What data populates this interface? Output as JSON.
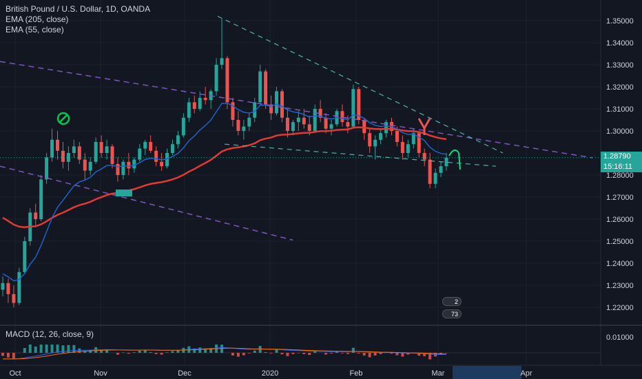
{
  "legend": {
    "symbol": "British Pound / U.S. Dollar, 1D, OANDA",
    "ema1": "EMA (205, close)",
    "ema2": "EMA (55, close)"
  },
  "macd_label": "MACD (12, 26, close, 9)",
  "price_axis": {
    "ticks": [
      "1.35000",
      "1.34000",
      "1.33000",
      "1.32000",
      "1.31000",
      "1.30000",
      "1.28000",
      "1.27000",
      "1.26000",
      "1.25000",
      "1.24000",
      "1.23000",
      "1.22000"
    ],
    "current_price": "1.28790",
    "countdown": "15:16:11",
    "macd_tick": "0.01000"
  },
  "time_axis": [
    "Oct",
    "Nov",
    "Dec",
    "2020",
    "Feb",
    "Mar",
    "Apr"
  ],
  "event_badges": [
    {
      "count": "2"
    },
    {
      "count": "73"
    }
  ],
  "colors": {
    "background": "#131722",
    "up": "#26a69a",
    "down": "#ef5350",
    "ema205": "#e53935",
    "ema55": "#1e64c8",
    "trend_purple": "#7e57c2",
    "trend_green": "#4db6ac",
    "price_tag": "#26a69a"
  },
  "chart_data": {
    "type": "candlestick",
    "title": "British Pound / U.S. Dollar, 1D, OANDA",
    "ylim": [
      1.215,
      1.355
    ],
    "series_candles": [
      [
        1.228,
        1.234,
        1.225,
        1.231
      ],
      [
        1.231,
        1.233,
        1.222,
        1.226
      ],
      [
        1.226,
        1.23,
        1.22,
        1.222
      ],
      [
        1.222,
        1.238,
        1.221,
        1.236
      ],
      [
        1.236,
        1.252,
        1.235,
        1.25
      ],
      [
        1.25,
        1.265,
        1.248,
        1.263
      ],
      [
        1.263,
        1.267,
        1.257,
        1.26
      ],
      [
        1.26,
        1.28,
        1.259,
        1.278
      ],
      [
        1.278,
        1.29,
        1.276,
        1.288
      ],
      [
        1.288,
        1.301,
        1.286,
        1.296
      ],
      [
        1.296,
        1.3,
        1.287,
        1.291
      ],
      [
        1.291,
        1.295,
        1.283,
        1.286
      ],
      [
        1.286,
        1.293,
        1.282,
        1.29
      ],
      [
        1.29,
        1.296,
        1.288,
        1.293
      ],
      [
        1.293,
        1.295,
        1.285,
        1.287
      ],
      [
        1.287,
        1.29,
        1.278,
        1.282
      ],
      [
        1.282,
        1.288,
        1.28,
        1.286
      ],
      [
        1.286,
        1.297,
        1.285,
        1.295
      ],
      [
        1.295,
        1.298,
        1.288,
        1.29
      ],
      [
        1.29,
        1.296,
        1.287,
        1.293
      ],
      [
        1.293,
        1.294,
        1.283,
        1.285
      ],
      [
        1.285,
        1.288,
        1.277,
        1.28
      ],
      [
        1.28,
        1.287,
        1.278,
        1.286
      ],
      [
        1.286,
        1.29,
        1.28,
        1.283
      ],
      [
        1.283,
        1.288,
        1.281,
        1.287
      ],
      [
        1.287,
        1.294,
        1.286,
        1.292
      ],
      [
        1.292,
        1.296,
        1.289,
        1.295
      ],
      [
        1.295,
        1.298,
        1.29,
        1.291
      ],
      [
        1.291,
        1.293,
        1.284,
        1.286
      ],
      [
        1.286,
        1.29,
        1.282,
        1.284
      ],
      [
        1.284,
        1.292,
        1.283,
        1.29
      ],
      [
        1.29,
        1.296,
        1.289,
        1.294
      ],
      [
        1.294,
        1.3,
        1.292,
        1.298
      ],
      [
        1.298,
        1.308,
        1.297,
        1.306
      ],
      [
        1.306,
        1.315,
        1.304,
        1.313
      ],
      [
        1.313,
        1.316,
        1.308,
        1.31
      ],
      [
        1.31,
        1.318,
        1.309,
        1.315
      ],
      [
        1.315,
        1.32,
        1.312,
        1.314
      ],
      [
        1.314,
        1.319,
        1.31,
        1.318
      ],
      [
        1.318,
        1.333,
        1.316,
        1.33
      ],
      [
        1.33,
        1.351,
        1.328,
        1.333
      ],
      [
        1.333,
        1.334,
        1.31,
        1.313
      ],
      [
        1.313,
        1.315,
        1.302,
        1.305
      ],
      [
        1.305,
        1.309,
        1.298,
        1.3
      ],
      [
        1.3,
        1.305,
        1.296,
        1.302
      ],
      [
        1.302,
        1.308,
        1.3,
        1.306
      ],
      [
        1.306,
        1.315,
        1.304,
        1.313
      ],
      [
        1.313,
        1.33,
        1.312,
        1.327
      ],
      [
        1.327,
        1.328,
        1.31,
        1.312
      ],
      [
        1.312,
        1.316,
        1.305,
        1.308
      ],
      [
        1.308,
        1.32,
        1.307,
        1.318
      ],
      [
        1.318,
        1.319,
        1.304,
        1.306
      ],
      [
        1.306,
        1.31,
        1.297,
        1.3
      ],
      [
        1.3,
        1.305,
        1.298,
        1.304
      ],
      [
        1.304,
        1.309,
        1.3,
        1.306
      ],
      [
        1.306,
        1.31,
        1.301,
        1.303
      ],
      [
        1.303,
        1.307,
        1.298,
        1.3
      ],
      [
        1.3,
        1.312,
        1.299,
        1.31
      ],
      [
        1.31,
        1.314,
        1.304,
        1.306
      ],
      [
        1.306,
        1.308,
        1.299,
        1.301
      ],
      [
        1.301,
        1.305,
        1.298,
        1.303
      ],
      [
        1.303,
        1.31,
        1.302,
        1.309
      ],
      [
        1.309,
        1.312,
        1.302,
        1.304
      ],
      [
        1.304,
        1.307,
        1.299,
        1.302
      ],
      [
        1.302,
        1.321,
        1.301,
        1.319
      ],
      [
        1.319,
        1.32,
        1.303,
        1.305
      ],
      [
        1.305,
        1.306,
        1.296,
        1.299
      ],
      [
        1.299,
        1.301,
        1.29,
        1.293
      ],
      [
        1.293,
        1.298,
        1.287,
        1.296
      ],
      [
        1.296,
        1.301,
        1.294,
        1.299
      ],
      [
        1.299,
        1.305,
        1.297,
        1.304
      ],
      [
        1.304,
        1.306,
        1.298,
        1.3
      ],
      [
        1.3,
        1.302,
        1.293,
        1.295
      ],
      [
        1.295,
        1.298,
        1.287,
        1.29
      ],
      [
        1.29,
        1.296,
        1.288,
        1.294
      ],
      [
        1.294,
        1.301,
        1.292,
        1.299
      ],
      [
        1.299,
        1.3,
        1.288,
        1.29
      ],
      [
        1.29,
        1.292,
        1.284,
        1.287
      ],
      [
        1.287,
        1.29,
        1.274,
        1.276
      ],
      [
        1.276,
        1.283,
        1.274,
        1.281
      ],
      [
        1.281,
        1.286,
        1.279,
        1.284
      ],
      [
        1.284,
        1.29,
        1.282,
        1.2879
      ]
    ]
  }
}
